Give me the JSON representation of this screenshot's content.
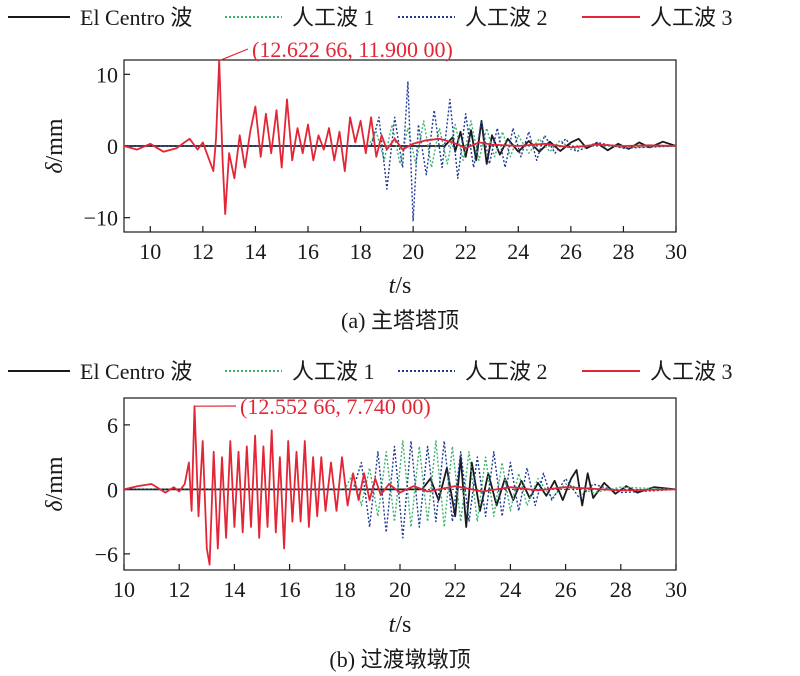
{
  "chart_data": [
    {
      "type": "line",
      "caption": "(a) 主塔塔顶",
      "xlabel_italic": "t",
      "xlabel_unit": "/s",
      "ylabel_italic": "δ",
      "ylabel_unit": "/mm",
      "xlim": [
        9,
        30
      ],
      "ylim": [
        -12,
        12
      ],
      "xticks": [
        10,
        12,
        14,
        16,
        18,
        20,
        22,
        24,
        26,
        28,
        30
      ],
      "yticks": [
        -10,
        0,
        10
      ],
      "legend_position": "top",
      "annotation": {
        "text": "(12.622 66, 11.900 00)",
        "x": 12.62266,
        "y": 11.9
      },
      "series": [
        {
          "name": "El Centro 波",
          "color": "#1a1a1a",
          "style": "solid",
          "x": [
            9,
            21.2,
            21.5,
            21.6,
            21.8,
            22.0,
            22.2,
            22.4,
            22.6,
            22.8,
            23.0,
            23.3,
            23.6,
            24.0,
            24.4,
            24.8,
            25.2,
            25.6,
            26.0,
            26.3,
            26.6,
            27.0,
            27.4,
            27.8,
            28.2,
            28.6,
            29.0,
            29.5,
            30
          ],
          "y": [
            0,
            0,
            1.2,
            -0.8,
            2.0,
            -1.5,
            2.2,
            -2.0,
            3.5,
            -2.5,
            1.5,
            -1.2,
            1.0,
            -0.8,
            0.7,
            -0.8,
            0.6,
            -0.7,
            0.5,
            1.0,
            -0.3,
            0.4,
            -0.6,
            0.3,
            -0.4,
            0.5,
            -0.2,
            0.6,
            0
          ]
        },
        {
          "name": "人工波 1",
          "color": "#3cb371",
          "style": "dotted",
          "x": [
            9,
            18.3,
            18.6,
            18.9,
            19.2,
            19.5,
            19.8,
            20.1,
            20.4,
            20.7,
            21.0,
            21.3,
            21.6,
            21.9,
            22.2,
            22.5,
            22.8,
            23.1,
            23.4,
            23.7,
            24.0,
            24.4,
            24.8,
            25.2,
            25.6,
            26.0,
            27.0,
            28.0,
            30
          ],
          "y": [
            0,
            0,
            2.0,
            -2.0,
            3.0,
            -2.5,
            2.5,
            -2.5,
            3.5,
            -3.0,
            2.5,
            -2.5,
            3.0,
            -2.0,
            3.5,
            -2.0,
            2.5,
            -1.5,
            2.0,
            -1.5,
            1.5,
            -1.0,
            1.0,
            -0.8,
            0.8,
            -0.5,
            0.3,
            -0.2,
            0
          ]
        },
        {
          "name": "人工波 2",
          "color": "#1f3a93",
          "style": "dotted",
          "x": [
            9,
            18.4,
            18.7,
            19.0,
            19.3,
            19.6,
            19.8,
            20.0,
            20.2,
            20.5,
            20.8,
            21.1,
            21.4,
            21.7,
            22.0,
            22.3,
            22.6,
            22.9,
            23.2,
            23.5,
            23.8,
            24.1,
            24.4,
            24.7,
            25.0,
            25.4,
            25.8,
            26.2,
            27.0,
            28.0,
            30
          ],
          "y": [
            0,
            0,
            4.0,
            -6.0,
            4.0,
            -3.0,
            9.0,
            -10.5,
            3.0,
            -4.0,
            5.0,
            -3.0,
            6.5,
            -4.5,
            4.5,
            -3.0,
            3.5,
            -2.5,
            2.5,
            -3.0,
            2.5,
            -1.5,
            2.0,
            -2.0,
            1.5,
            -1.0,
            1.0,
            -0.8,
            0.5,
            -0.3,
            0
          ]
        },
        {
          "name": "人工波 3",
          "color": "#e32636",
          "style": "solid",
          "x": [
            9,
            9.5,
            10.0,
            10.5,
            11.0,
            11.3,
            11.5,
            11.8,
            12.0,
            12.2,
            12.4,
            12.5,
            12.62266,
            12.75,
            12.85,
            13.0,
            13.2,
            13.4,
            13.6,
            13.8,
            14.0,
            14.2,
            14.4,
            14.6,
            14.8,
            15.0,
            15.2,
            15.4,
            15.6,
            15.8,
            16.0,
            16.2,
            16.4,
            16.6,
            16.8,
            17.0,
            17.2,
            17.4,
            17.6,
            17.8,
            18.0,
            18.2,
            18.4,
            18.6,
            18.8,
            19.0,
            19.3,
            19.6,
            20.0,
            20.5,
            21.0,
            21.5,
            22.0,
            22.5,
            23.0,
            24.0,
            25.0,
            26.0,
            27.0,
            28.0,
            29.0,
            30
          ],
          "y": [
            0,
            -0.5,
            0.3,
            -0.8,
            -0.3,
            0.5,
            1.0,
            -0.5,
            0.5,
            -1.5,
            -3.5,
            1.0,
            11.9,
            -2.0,
            -9.5,
            -1.0,
            -4.5,
            1.5,
            -3.0,
            2.0,
            5.5,
            -1.5,
            4.5,
            -1.0,
            5.0,
            -3.0,
            6.5,
            -2.0,
            2.5,
            -1.0,
            3.0,
            -2.0,
            1.5,
            -0.5,
            2.5,
            -2.0,
            2.0,
            -3.5,
            4.0,
            0.5,
            3.5,
            -1.0,
            4.0,
            -1.5,
            1.5,
            -0.5,
            1.0,
            -0.5,
            0.3,
            0.8,
            1.0,
            0.5,
            -0.3,
            0.5,
            0.2,
            0.0,
            0.3,
            -0.2,
            0.2,
            0.0,
            0.1,
            0
          ]
        }
      ]
    },
    {
      "type": "line",
      "caption": "(b) 过渡墩墩顶",
      "xlabel_italic": "t",
      "xlabel_unit": "/s",
      "ylabel_italic": "δ",
      "ylabel_unit": "/mm",
      "xlim": [
        10,
        30
      ],
      "ylim": [
        -7.5,
        8.5
      ],
      "xticks": [
        10,
        12,
        14,
        16,
        18,
        20,
        22,
        24,
        26,
        28,
        30
      ],
      "yticks": [
        -6,
        0,
        6
      ],
      "legend_position": "top",
      "annotation": {
        "text": "(12.552 66, 7.740 00)",
        "x": 12.55266,
        "y": 7.74
      },
      "series": [
        {
          "name": "El Centro 波",
          "color": "#1a1a1a",
          "style": "solid",
          "x": [
            10,
            20.8,
            21.1,
            21.4,
            21.7,
            22.0,
            22.2,
            22.4,
            22.6,
            22.9,
            23.2,
            23.5,
            23.8,
            24.1,
            24.4,
            24.7,
            25.0,
            25.3,
            25.6,
            25.9,
            26.2,
            26.4,
            26.6,
            26.8,
            27.0,
            27.4,
            27.8,
            28.2,
            28.6,
            29.2,
            30
          ],
          "y": [
            0,
            0,
            1.0,
            -1.0,
            2.0,
            -2.5,
            3.0,
            -3.5,
            2.5,
            -2.0,
            1.5,
            -1.5,
            1.0,
            -1.0,
            0.8,
            -0.8,
            0.6,
            -0.6,
            0.8,
            -1.0,
            1.0,
            1.8,
            -1.5,
            1.5,
            -0.8,
            0.6,
            -0.4,
            0.3,
            -0.3,
            0.2,
            0
          ]
        },
        {
          "name": "人工波 1",
          "color": "#3cb371",
          "style": "dotted",
          "x": [
            10,
            18.0,
            18.3,
            18.6,
            18.9,
            19.2,
            19.5,
            19.8,
            20.1,
            20.4,
            20.7,
            21.0,
            21.3,
            21.6,
            21.9,
            22.2,
            22.5,
            22.8,
            23.1,
            23.4,
            23.7,
            24.0,
            24.3,
            24.6,
            25.0,
            25.5,
            26.0,
            27.0,
            28.0,
            30
          ],
          "y": [
            0,
            0,
            1.5,
            -1.5,
            2.0,
            -2.5,
            3.5,
            -3.0,
            4.5,
            -3.5,
            4.0,
            -3.0,
            4.5,
            -3.5,
            4.0,
            -3.0,
            3.5,
            -3.0,
            3.0,
            -2.5,
            2.5,
            -2.0,
            1.5,
            -1.5,
            1.0,
            -0.8,
            0.5,
            -0.3,
            0.2,
            0
          ]
        },
        {
          "name": "人工波 2",
          "color": "#1f3a93",
          "style": "dotted",
          "x": [
            10,
            18.3,
            18.6,
            18.9,
            19.2,
            19.5,
            19.8,
            20.1,
            20.4,
            20.7,
            21.0,
            21.3,
            21.6,
            21.9,
            22.2,
            22.5,
            22.8,
            23.1,
            23.4,
            23.7,
            24.0,
            24.3,
            24.6,
            24.9,
            25.2,
            25.5,
            26.0,
            26.5,
            27.0,
            28.0,
            30
          ],
          "y": [
            0,
            0,
            2.5,
            -3.5,
            3.5,
            -4.0,
            4.0,
            -4.5,
            4.5,
            -3.5,
            4.0,
            -3.0,
            4.5,
            -3.0,
            3.5,
            -3.0,
            3.0,
            -2.5,
            3.5,
            -2.5,
            2.5,
            -2.0,
            2.0,
            -1.5,
            1.5,
            -1.0,
            1.0,
            -0.8,
            0.5,
            -0.3,
            0
          ]
        },
        {
          "name": "人工波 3",
          "color": "#e32636",
          "style": "solid",
          "x": [
            10,
            10.5,
            11.0,
            11.5,
            11.8,
            12.0,
            12.2,
            12.35,
            12.45,
            12.55266,
            12.7,
            12.85,
            13.0,
            13.1,
            13.25,
            13.4,
            13.55,
            13.7,
            13.85,
            14.0,
            14.15,
            14.3,
            14.45,
            14.6,
            14.75,
            14.9,
            15.05,
            15.2,
            15.35,
            15.5,
            15.65,
            15.8,
            15.95,
            16.1,
            16.25,
            16.4,
            16.55,
            16.7,
            16.85,
            17.0,
            17.15,
            17.3,
            17.5,
            17.7,
            17.9,
            18.1,
            18.3,
            18.5,
            18.7,
            18.9,
            19.1,
            19.3,
            19.6,
            20.0,
            20.5,
            21.0,
            22.0,
            23.0,
            24.0,
            25.0,
            26.0,
            28.0,
            30
          ],
          "y": [
            0,
            0.3,
            0.5,
            -0.3,
            0.2,
            -0.2,
            0.5,
            2.5,
            -2.0,
            7.74,
            -2.5,
            4.5,
            -5.5,
            -7.0,
            3.5,
            -5.5,
            3.0,
            -4.5,
            4.5,
            -3.5,
            3.5,
            -4.0,
            4.0,
            -3.5,
            5.0,
            -4.5,
            4.0,
            -3.5,
            5.5,
            -4.0,
            3.0,
            -5.5,
            4.5,
            -3.0,
            3.5,
            -3.0,
            4.5,
            -3.5,
            3.0,
            -2.5,
            3.0,
            -2.0,
            2.5,
            -2.0,
            3.0,
            -1.5,
            1.5,
            -1.0,
            1.5,
            -1.0,
            1.0,
            -0.5,
            0.5,
            -0.3,
            0.3,
            -0.2,
            0.3,
            -0.2,
            0.2,
            -0.1,
            0.2,
            -0.1,
            0
          ]
        }
      ]
    }
  ]
}
